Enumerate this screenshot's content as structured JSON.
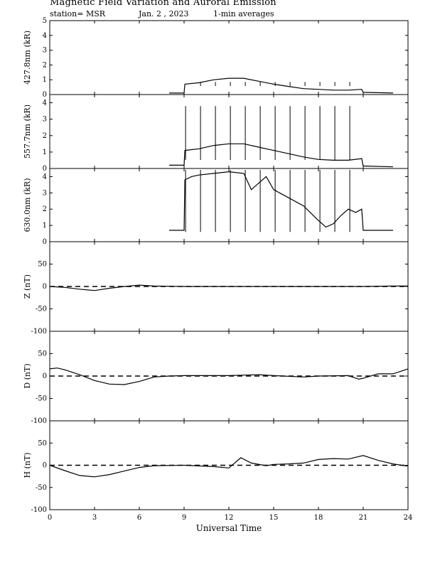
{
  "header": {
    "title": "Magnetic Field Variation and Auroral Emission",
    "station": "station= MSR",
    "date": "Jan. 2 , 2023",
    "averaging": "1-min averages"
  },
  "chart_data": [
    {
      "type": "line",
      "ylabel": "427.8nm (kR)",
      "ylim": [
        0,
        5
      ],
      "yticks": [
        0,
        1,
        2,
        3,
        4,
        5
      ],
      "series": [
        {
          "points": [
            [
              8.0,
              0.1
            ],
            [
              9.0,
              0.1
            ],
            [
              9.05,
              0.7
            ],
            [
              10,
              0.8
            ],
            [
              11,
              1.0
            ],
            [
              12,
              1.1
            ],
            [
              13,
              1.1
            ],
            [
              14,
              0.9
            ],
            [
              15,
              0.7
            ],
            [
              16,
              0.55
            ],
            [
              17,
              0.4
            ],
            [
              18,
              0.35
            ],
            [
              19,
              0.3
            ],
            [
              20,
              0.3
            ],
            [
              20.9,
              0.35
            ],
            [
              21.0,
              0.15
            ],
            [
              23.0,
              0.1
            ]
          ]
        }
      ],
      "spikes": [
        {
          "times": [
            10.1,
            11.1,
            12.1,
            13.1,
            14.1,
            15.1,
            16.1,
            17.1,
            18.1,
            19.1,
            20.1
          ],
          "top": 0.85
        }
      ]
    },
    {
      "type": "line",
      "ylabel": "557.7nm (kR)",
      "ylim": [
        0,
        4.5
      ],
      "yticks": [
        0,
        1,
        2,
        3,
        4
      ],
      "series": [
        {
          "points": [
            [
              8.0,
              0.2
            ],
            [
              9.0,
              0.2
            ],
            [
              9.05,
              1.1
            ],
            [
              10,
              1.2
            ],
            [
              11,
              1.4
            ],
            [
              12,
              1.5
            ],
            [
              13,
              1.5
            ],
            [
              14,
              1.3
            ],
            [
              15,
              1.1
            ],
            [
              16,
              0.9
            ],
            [
              17,
              0.7
            ],
            [
              18,
              0.55
            ],
            [
              19,
              0.5
            ],
            [
              20,
              0.5
            ],
            [
              20.9,
              0.6
            ],
            [
              21.0,
              0.15
            ],
            [
              23.0,
              0.1
            ]
          ]
        }
      ],
      "spikes": [
        {
          "times": [
            9.1,
            10.1,
            11.1,
            12.1,
            13.1,
            14.1,
            15.1,
            16.1,
            17.1,
            18.1,
            19.1,
            20.1
          ],
          "top": 3.8
        }
      ]
    },
    {
      "type": "line",
      "ylabel": "630.0nm (kR)",
      "ylim": [
        0,
        4.5
      ],
      "yticks": [
        0,
        1,
        2,
        3,
        4
      ],
      "series": [
        {
          "points": [
            [
              8.0,
              0.7
            ],
            [
              9.0,
              0.7
            ],
            [
              9.05,
              3.8
            ],
            [
              9.5,
              4.0
            ],
            [
              10,
              4.1
            ],
            [
              11,
              4.2
            ],
            [
              12,
              4.3
            ],
            [
              13,
              4.2
            ],
            [
              13.5,
              3.2
            ],
            [
              14,
              3.6
            ],
            [
              14.5,
              4.0
            ],
            [
              15,
              3.2
            ],
            [
              16,
              2.7
            ],
            [
              17,
              2.2
            ],
            [
              18,
              1.3
            ],
            [
              18.5,
              0.9
            ],
            [
              19,
              1.1
            ],
            [
              19.5,
              1.6
            ],
            [
              20,
              2.0
            ],
            [
              20.5,
              1.8
            ],
            [
              20.9,
              2.0
            ],
            [
              21.0,
              0.7
            ],
            [
              23.0,
              0.7
            ]
          ]
        }
      ],
      "spikes": [
        {
          "times": [
            9.1,
            10.1,
            11.1,
            12.1,
            13.1,
            14.1,
            15.1,
            16.1,
            17.1,
            18.1,
            19.1,
            20.1
          ],
          "bottom": 0.6
        }
      ]
    },
    {
      "type": "line",
      "ylabel": "Z (nT)",
      "ylim": [
        -100,
        100
      ],
      "yticks": [
        -100,
        -50,
        0,
        50
      ],
      "series": [
        {
          "points": [
            [
              0,
              0
            ],
            [
              1,
              -2
            ],
            [
              2,
              -6
            ],
            [
              3,
              -9
            ],
            [
              4,
              -4
            ],
            [
              5,
              0
            ],
            [
              6,
              3
            ],
            [
              7,
              1
            ],
            [
              9,
              0
            ],
            [
              12,
              0
            ],
            [
              15,
              0
            ],
            [
              18,
              0
            ],
            [
              21,
              0
            ],
            [
              23,
              1
            ],
            [
              24,
              1
            ]
          ]
        }
      ]
    },
    {
      "type": "line",
      "ylabel": "D (nT)",
      "ylim": [
        -100,
        100
      ],
      "yticks": [
        -100,
        -50,
        0,
        50
      ],
      "series": [
        {
          "points": [
            [
              0,
              16
            ],
            [
              0.5,
              18
            ],
            [
              1,
              14
            ],
            [
              2,
              3
            ],
            [
              3,
              -10
            ],
            [
              4,
              -18
            ],
            [
              5,
              -19
            ],
            [
              6,
              -12
            ],
            [
              7,
              -2
            ],
            [
              8,
              0
            ],
            [
              9,
              1
            ],
            [
              12,
              1
            ],
            [
              13,
              2
            ],
            [
              14,
              3
            ],
            [
              15,
              1
            ],
            [
              17,
              -2
            ],
            [
              18,
              0
            ],
            [
              20,
              1
            ],
            [
              20.7,
              -7
            ],
            [
              21,
              -5
            ],
            [
              22,
              5
            ],
            [
              23,
              5
            ],
            [
              24,
              16
            ]
          ]
        }
      ]
    },
    {
      "type": "line",
      "ylabel": "H (nT)",
      "ylim": [
        -100,
        100
      ],
      "yticks": [
        -100,
        -50,
        0,
        50
      ],
      "series": [
        {
          "points": [
            [
              0,
              0
            ],
            [
              1,
              -12
            ],
            [
              2,
              -23
            ],
            [
              3,
              -26
            ],
            [
              4,
              -21
            ],
            [
              5,
              -13
            ],
            [
              6,
              -5
            ],
            [
              7,
              -1
            ],
            [
              9,
              0
            ],
            [
              11,
              -3
            ],
            [
              12,
              -6
            ],
            [
              12.8,
              17
            ],
            [
              13.5,
              5
            ],
            [
              14.5,
              -1
            ],
            [
              15,
              2
            ],
            [
              16,
              3
            ],
            [
              17,
              5
            ],
            [
              18,
              13
            ],
            [
              19,
              15
            ],
            [
              20,
              14
            ],
            [
              21,
              22
            ],
            [
              22,
              11
            ],
            [
              23,
              3
            ],
            [
              24,
              -2
            ]
          ]
        }
      ]
    }
  ],
  "xaxis": {
    "label": "Universal Time",
    "xlim": [
      0,
      24
    ],
    "ticks": [
      "0",
      "3",
      "6",
      "9",
      "12",
      "15",
      "18",
      "21",
      "24"
    ]
  }
}
